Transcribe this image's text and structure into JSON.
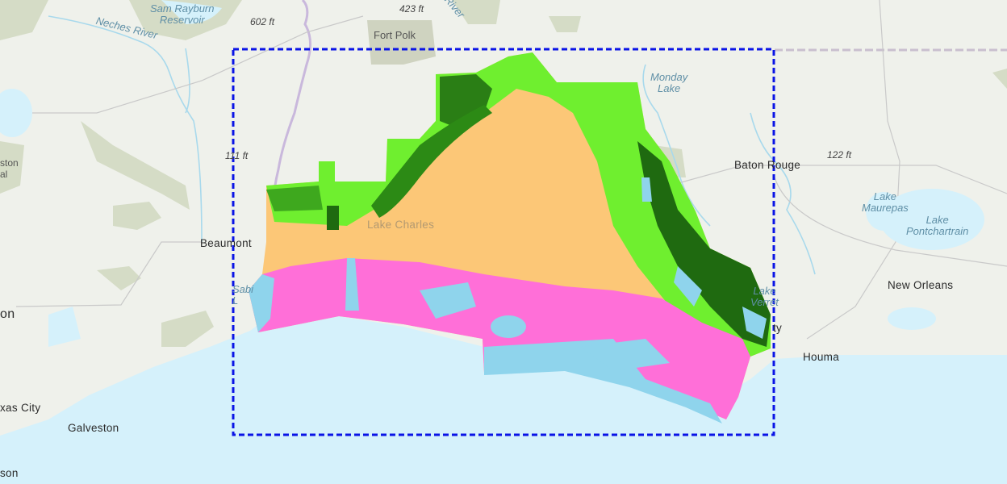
{
  "map": {
    "basemap": "topographic-light-gray",
    "colors": {
      "land": "#eff1eb",
      "water": "#d5f1fb",
      "lake": "#8fd4ec",
      "upland": "#fcc777",
      "marsh": "#ff6fd8",
      "forest_light": "#6fef2f",
      "forest_dark": "#1f6a10",
      "extent_box": "#0a14e6",
      "park": "#d5dcc6"
    },
    "labels": {
      "sam_rayburn": "Sam Rayburn\nReservoir",
      "neches_river": "Neches River",
      "elev_602": "602 ft",
      "elev_423": "423 ft",
      "river_partial": "River",
      "fort_polk": "Fort Polk",
      "monday_lake": "Monday\nLake",
      "elev_111": "111 ft",
      "baton_rouge": "Baton Rouge",
      "elev_122": "122 ft",
      "lake_maurepas": "Lake\nMaurepas",
      "lake_pontchartrain": "Lake\nPontchartrain",
      "beaumont": "Beaumont",
      "lake_charles": "Lake Charles",
      "new_orleans": "New Orleans",
      "houma": "Houma",
      "galveston": "Galveston",
      "texas_city": "xas City",
      "houston_partial": "on",
      "son_partial": "son",
      "ston_partial": "ston\nal",
      "sabine_lake": "Sabi\nL",
      "lake_verret": "Lake\nVerret",
      "morgan_city_partial": "ty"
    }
  }
}
